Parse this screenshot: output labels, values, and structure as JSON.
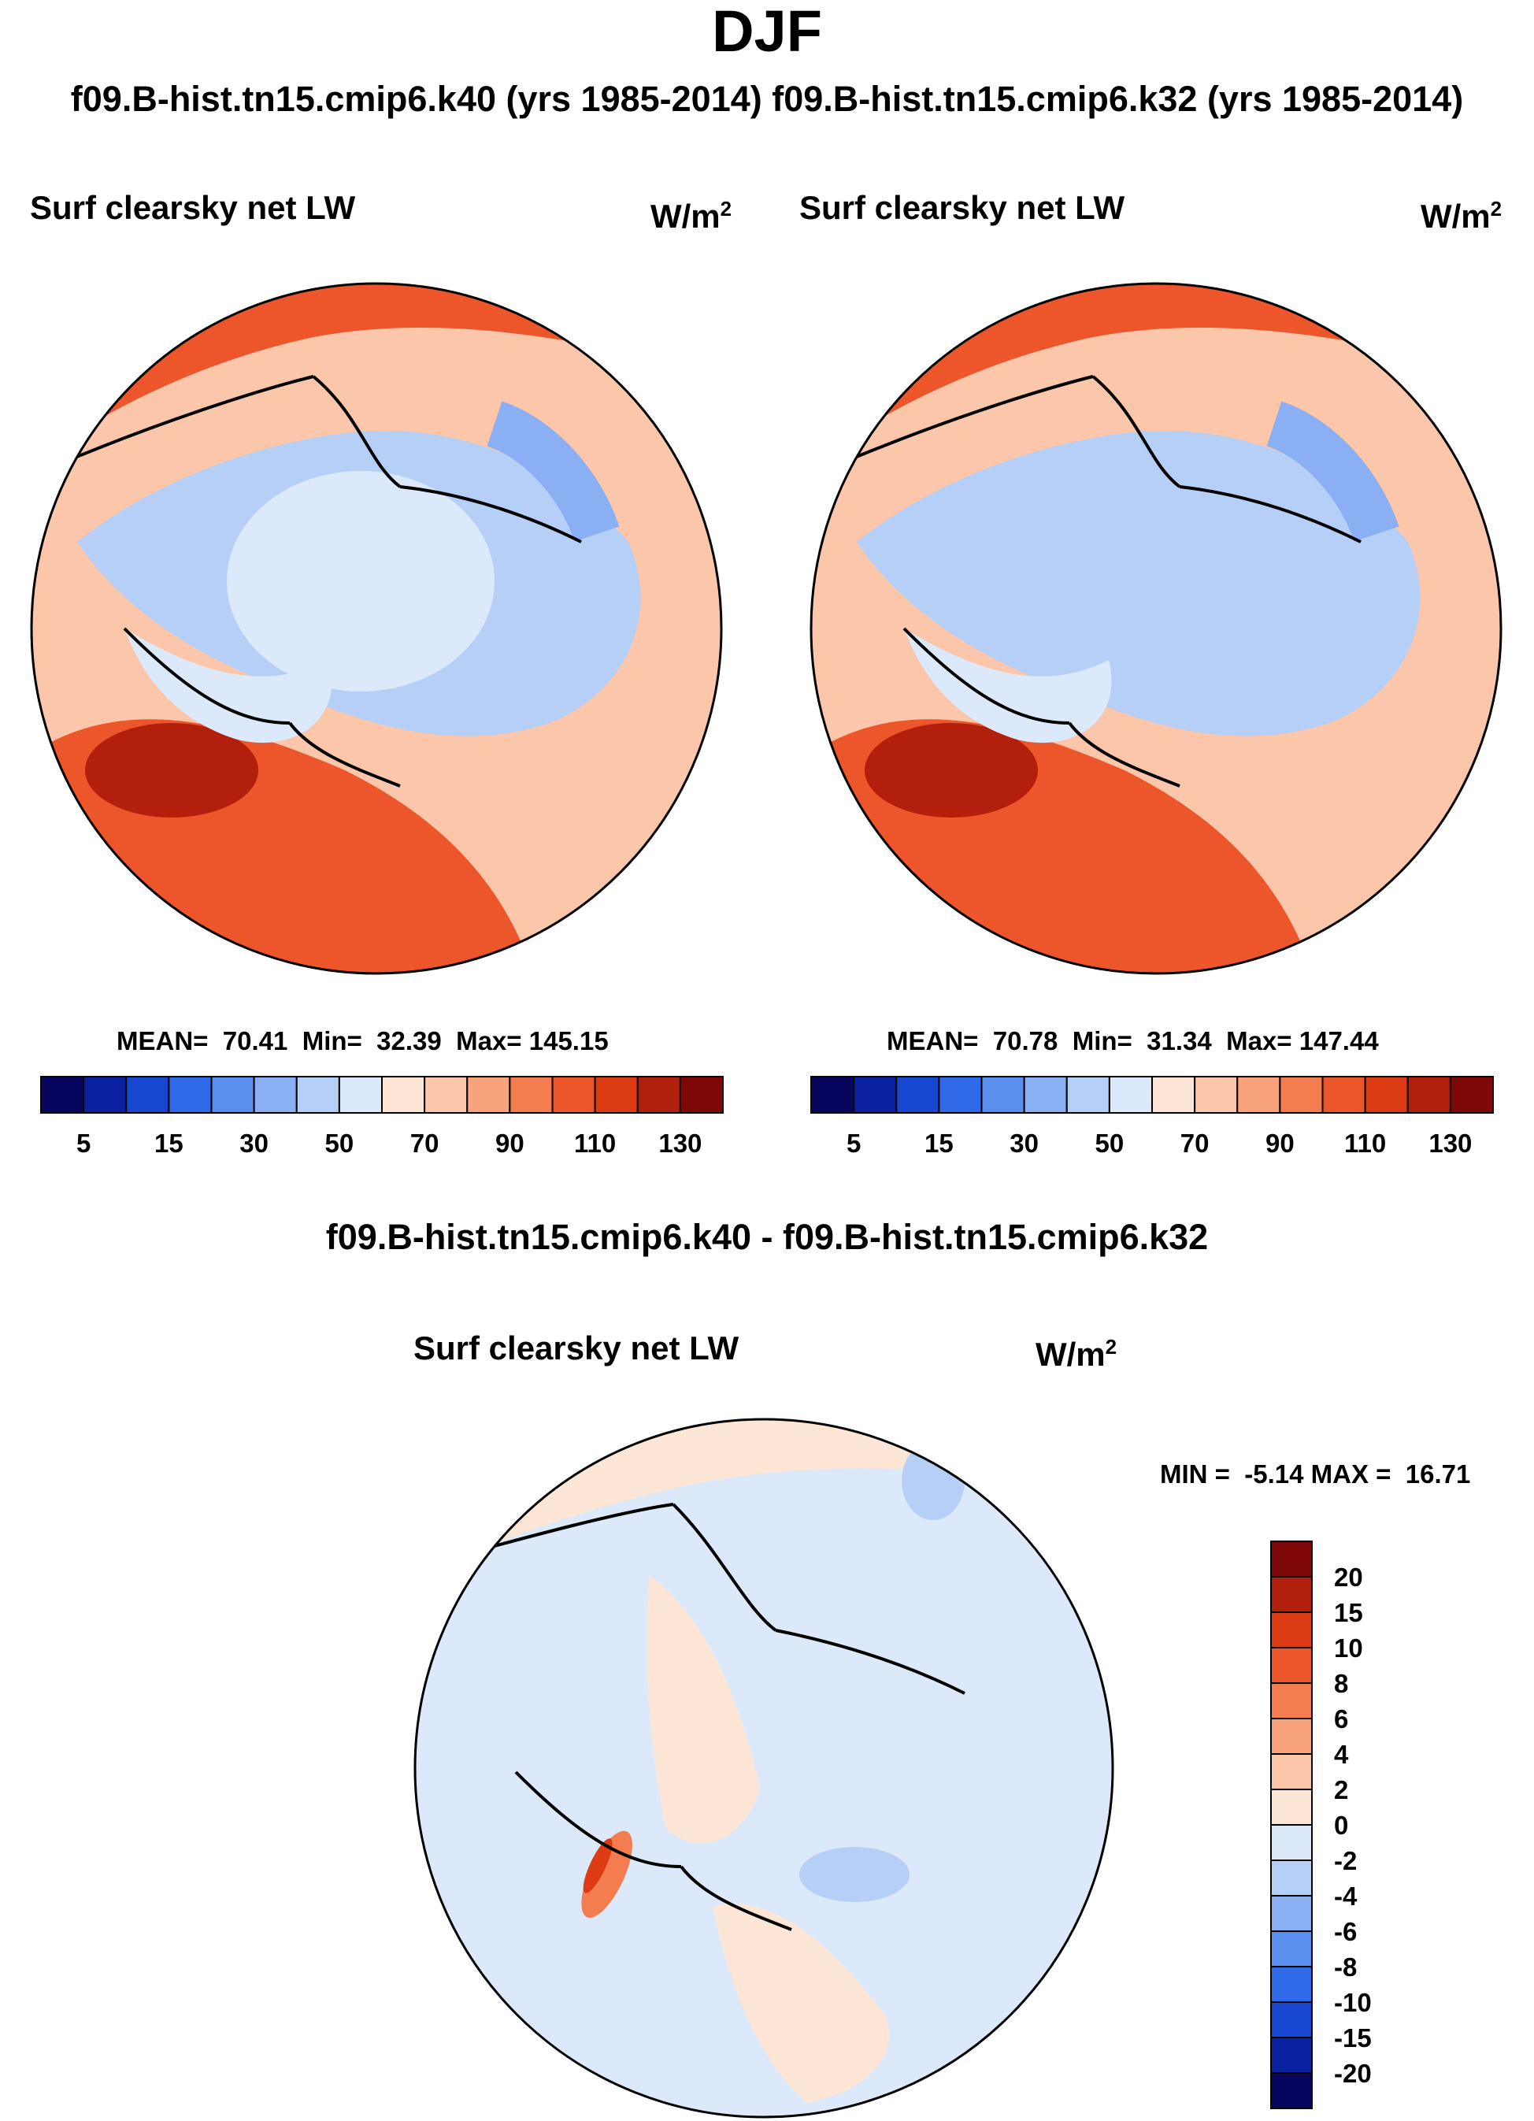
{
  "title": "DJF",
  "subtitle": "f09.B-hist.tn15.cmip6.k40 (yrs 1985-2014) f09.B-hist.tn15.cmip6.k32 (yrs 1985-2014)",
  "diff_title": "f09.B-hist.tn15.cmip6.k40 - f09.B-hist.tn15.cmip6.k32",
  "colors": {
    "land_outline": "#000000",
    "seq_palette": [
      "#08055e",
      "#0b22a0",
      "#1747d1",
      "#2f6ae8",
      "#5a8ff0",
      "#8ab0f3",
      "#b5cff7",
      "#dbe9fb",
      "#fde6d6",
      "#fcc6aa",
      "#f9a37d",
      "#f47d4f",
      "#ed552b",
      "#dc3b14",
      "#b31f0d",
      "#7e0708"
    ],
    "div_palette": [
      "#08055e",
      "#0b22a0",
      "#1747d1",
      "#2f6ae8",
      "#5a8ff0",
      "#8ab0f3",
      "#b5cff7",
      "#dbe9fb",
      "#fde6d6",
      "#fcc6aa",
      "#f9a37d",
      "#f47d4f",
      "#ed552b",
      "#dc3b14",
      "#b31f0d",
      "#7e0708"
    ]
  },
  "chart_data": [
    {
      "type": "map",
      "panel": "k40",
      "title": "Surf clearsky net LW",
      "units": "W/m",
      "units_exp": "2",
      "stats_mean_label": "MEAN=",
      "stats_mean": "70.41",
      "stats_min_label": "Min=",
      "stats_min": "32.39",
      "stats_max_label": "Max=",
      "stats_max": "145.15",
      "colorbar_ticks": [
        "5",
        "15",
        "30",
        "50",
        "70",
        "90",
        "110",
        "130"
      ]
    },
    {
      "type": "map",
      "panel": "k32",
      "title": "Surf clearsky net LW",
      "units": "W/m",
      "units_exp": "2",
      "stats_mean_label": "MEAN=",
      "stats_mean": "70.78",
      "stats_min_label": "Min=",
      "stats_min": "31.34",
      "stats_max_label": "Max=",
      "stats_max": "147.44",
      "colorbar_ticks": [
        "5",
        "15",
        "30",
        "50",
        "70",
        "90",
        "110",
        "130"
      ]
    },
    {
      "type": "map",
      "panel": "difference",
      "title": "Surf clearsky net LW",
      "units": "W/m",
      "units_exp": "2",
      "stats_min_label": "MIN =",
      "stats_min": "-5.14",
      "stats_max_label": "MAX =",
      "stats_max": "16.71",
      "colorbar_ticks": [
        "20",
        "15",
        "10",
        "8",
        "6",
        "4",
        "2",
        "0",
        "-2",
        "-4",
        "-6",
        "-8",
        "-10",
        "-15",
        "-20"
      ]
    }
  ]
}
